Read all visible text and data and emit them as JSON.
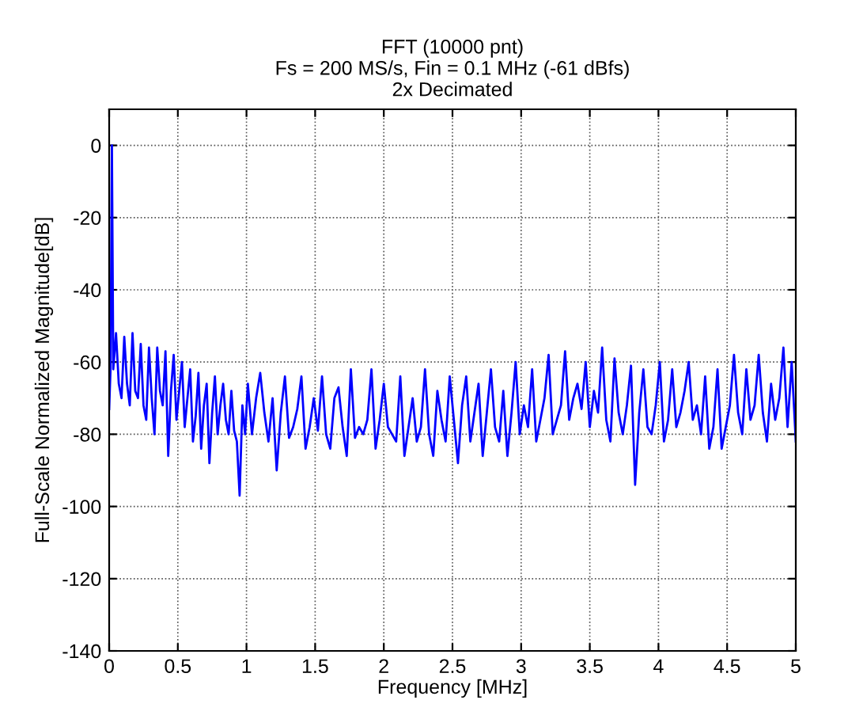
{
  "chart_data": {
    "type": "line",
    "title": "FFT (10000 pnt)\nFs = 200 MS/s, Fin = 0.1 MHz (-61 dBfs)\n2x Decimated",
    "xlabel": "Frequency [MHz]",
    "ylabel": "Full-Scale Normalized Magnitude[dB]",
    "series": [
      {
        "color": "#0000ff",
        "x": [
          0,
          0.01,
          0.02,
          0.03,
          0.05,
          0.07,
          0.09,
          0.11,
          0.13,
          0.15,
          0.17,
          0.19,
          0.21,
          0.23,
          0.25,
          0.27,
          0.29,
          0.31,
          0.33,
          0.35,
          0.37,
          0.39,
          0.41,
          0.43,
          0.45,
          0.47,
          0.49,
          0.51,
          0.53,
          0.55,
          0.57,
          0.59,
          0.61,
          0.63,
          0.65,
          0.67,
          0.69,
          0.71,
          0.73,
          0.75,
          0.77,
          0.79,
          0.81,
          0.83,
          0.85,
          0.87,
          0.89,
          0.91,
          0.93,
          0.95,
          0.97,
          0.99,
          1.01,
          1.04,
          1.07,
          1.1,
          1.13,
          1.16,
          1.19,
          1.22,
          1.25,
          1.28,
          1.31,
          1.34,
          1.37,
          1.4,
          1.43,
          1.46,
          1.49,
          1.52,
          1.55,
          1.58,
          1.61,
          1.64,
          1.67,
          1.7,
          1.73,
          1.76,
          1.79,
          1.82,
          1.85,
          1.88,
          1.91,
          1.94,
          1.97,
          2.0,
          2.03,
          2.06,
          2.09,
          2.12,
          2.15,
          2.18,
          2.21,
          2.24,
          2.27,
          2.3,
          2.33,
          2.36,
          2.39,
          2.42,
          2.45,
          2.48,
          2.51,
          2.54,
          2.57,
          2.6,
          2.63,
          2.66,
          2.69,
          2.72,
          2.75,
          2.78,
          2.81,
          2.84,
          2.87,
          2.9,
          2.93,
          2.96,
          2.99,
          3.02,
          3.05,
          3.08,
          3.11,
          3.14,
          3.17,
          3.2,
          3.23,
          3.26,
          3.29,
          3.32,
          3.35,
          3.38,
          3.41,
          3.44,
          3.47,
          3.5,
          3.53,
          3.56,
          3.59,
          3.62,
          3.65,
          3.68,
          3.71,
          3.74,
          3.77,
          3.8,
          3.83,
          3.86,
          3.89,
          3.92,
          3.95,
          3.98,
          4.01,
          4.04,
          4.07,
          4.1,
          4.13,
          4.16,
          4.19,
          4.22,
          4.25,
          4.28,
          4.31,
          4.34,
          4.37,
          4.4,
          4.43,
          4.46,
          4.49,
          4.52,
          4.55,
          4.58,
          4.61,
          4.64,
          4.67,
          4.7,
          4.73,
          4.76,
          4.79,
          4.82,
          4.85,
          4.88,
          4.91,
          4.94,
          4.97,
          5.0
        ],
        "values": [
          -73,
          -62,
          0,
          -62,
          -52,
          -66,
          -70,
          -53,
          -66,
          -72,
          -52,
          -68,
          -70,
          -55,
          -72,
          -76,
          -56,
          -70,
          -80,
          -56,
          -68,
          -72,
          -57,
          -86,
          -68,
          -58,
          -76,
          -68,
          -60,
          -78,
          -70,
          -62,
          -82,
          -75,
          -63,
          -84,
          -72,
          -66,
          -88,
          -74,
          -64,
          -80,
          -72,
          -66,
          -76,
          -80,
          -68,
          -79,
          -82,
          -97,
          -72,
          -80,
          -66,
          -80,
          -70,
          -63,
          -74,
          -82,
          -70,
          -90,
          -74,
          -64,
          -81,
          -78,
          -73,
          -64,
          -84,
          -78,
          -70,
          -79,
          -64,
          -80,
          -84,
          -70,
          -67,
          -78,
          -86,
          -62,
          -81,
          -78,
          -80,
          -76,
          -62,
          -84,
          -76,
          -66,
          -78,
          -80,
          -82,
          -64,
          -86,
          -78,
          -70,
          -82,
          -78,
          -62,
          -80,
          -86,
          -68,
          -76,
          -82,
          -64,
          -76,
          -88,
          -72,
          -64,
          -82,
          -74,
          -66,
          -86,
          -74,
          -62,
          -78,
          -82,
          -68,
          -86,
          -74,
          -60,
          -80,
          -72,
          -78,
          -62,
          -82,
          -76,
          -70,
          -58,
          -80,
          -76,
          -72,
          -57,
          -76,
          -70,
          -66,
          -73,
          -60,
          -78,
          -68,
          -74,
          -56,
          -76,
          -82,
          -59,
          -74,
          -80,
          -72,
          -61,
          -94,
          -74,
          -62,
          -78,
          -80,
          -72,
          -60,
          -82,
          -76,
          -62,
          -78,
          -74,
          -68,
          -60,
          -76,
          -72,
          -80,
          -64,
          -84,
          -78,
          -62,
          -84,
          -78,
          -72,
          -58,
          -74,
          -80,
          -62,
          -76,
          -72,
          -58,
          -74,
          -82,
          -66,
          -76,
          -70,
          -56,
          -78,
          -60,
          -82
        ]
      }
    ],
    "xlim": [
      0,
      5
    ],
    "ylim": [
      -140,
      10
    ],
    "xticks": [
      0,
      0.5,
      1,
      1.5,
      2,
      2.5,
      3,
      3.5,
      4,
      4.5,
      5
    ],
    "yticks": [
      -140,
      -120,
      -100,
      -80,
      -60,
      -40,
      -20,
      0
    ],
    "grid": true
  }
}
